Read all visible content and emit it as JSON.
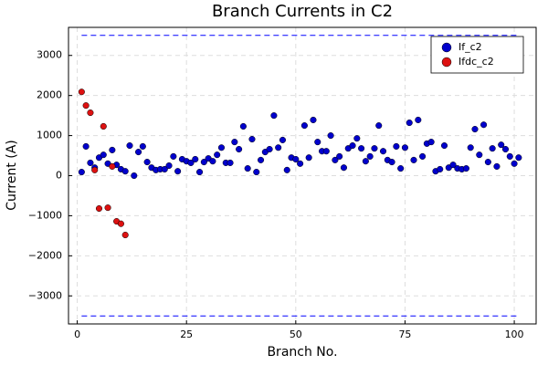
{
  "chart_data": {
    "type": "scatter",
    "title": "Branch Currents in C2",
    "x_label": "Branch No.",
    "y_label": "Current (A)",
    "xlim": [
      -2,
      105
    ],
    "ylim": [
      -3700,
      3700
    ],
    "xticks": [
      0,
      25,
      50,
      75,
      100
    ],
    "yticks": [
      {
        "value": -3000,
        "label": "−3000"
      },
      {
        "value": -2000,
        "label": "−2000"
      },
      {
        "value": -1000,
        "label": "−1000"
      },
      0,
      1000,
      2000,
      3000
    ],
    "grid": true,
    "legend": "top-right",
    "reference_lines": [
      3500,
      -3500
    ],
    "reference_line_color": "#0000ff",
    "series": [
      {
        "name": "If_c2",
        "color": "#0000cc",
        "x": [
          1,
          2,
          3,
          4,
          5,
          6,
          7,
          8,
          9,
          10,
          11,
          12,
          13,
          14,
          15,
          16,
          17,
          18,
          19,
          20,
          21,
          22,
          23,
          24,
          25,
          26,
          27,
          28,
          29,
          30,
          31,
          32,
          33,
          34,
          35,
          36,
          37,
          38,
          39,
          40,
          41,
          42,
          43,
          44,
          45,
          46,
          47,
          48,
          49,
          50,
          51,
          52,
          53,
          54,
          55,
          56,
          57,
          58,
          59,
          60,
          61,
          62,
          63,
          64,
          65,
          66,
          67,
          68,
          69,
          70,
          71,
          72,
          73,
          74,
          75,
          76,
          77,
          78,
          79,
          80,
          81,
          82,
          83,
          84,
          85,
          86,
          87,
          88,
          89,
          90,
          91,
          92,
          93,
          94,
          95,
          96,
          97,
          98,
          99,
          100,
          101
        ],
        "values": [
          90,
          730,
          320,
          200,
          450,
          520,
          300,
          640,
          270,
          160,
          110,
          750,
          0,
          590,
          730,
          340,
          200,
          140,
          160,
          160,
          250,
          480,
          110,
          410,
          360,
          320,
          410,
          90,
          340,
          430,
          360,
          520,
          700,
          320,
          320,
          840,
          660,
          1230,
          180,
          910,
          90,
          390,
          590,
          660,
          1500,
          700,
          890,
          140,
          450,
          410,
          300,
          1250,
          450,
          1390,
          840,
          610,
          610,
          1000,
          390,
          480,
          200,
          680,
          750,
          930,
          680,
          360,
          480,
          680,
          1250,
          610,
          390,
          340,
          730,
          180,
          700,
          1320,
          390,
          1390,
          480,
          800,
          840,
          110,
          160,
          750,
          200,
          270,
          180,
          160,
          180,
          700,
          1160,
          520,
          1270,
          340,
          680,
          230,
          770,
          660,
          480,
          300,
          450
        ]
      },
      {
        "name": "Ifdc_c2",
        "color": "#dd1111",
        "x": [
          1,
          2,
          3,
          4,
          5,
          6,
          7,
          8,
          9,
          10,
          11
        ],
        "values": [
          2090,
          1750,
          1570,
          140,
          -820,
          1230,
          -800,
          230,
          -1140,
          -1200,
          -1480
        ]
      }
    ]
  }
}
